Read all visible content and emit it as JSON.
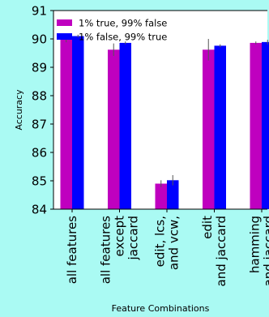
{
  "chart_data": {
    "type": "bar",
    "title": "",
    "xlabel": "Feature Combinations",
    "ylabel": "Accuracy",
    "ylim": [
      84,
      91
    ],
    "yticks": [
      84,
      85,
      86,
      87,
      88,
      89,
      90,
      91
    ],
    "grid": false,
    "legend_placement": "top-left",
    "categories": [
      [
        "all features"
      ],
      [
        "all features",
        "except",
        "jaccard"
      ],
      [
        "edit, lcs,",
        "and vcw,"
      ],
      [
        "edit",
        "and jaccard"
      ],
      [
        "hamming",
        "and jaccard"
      ]
    ],
    "series": [
      {
        "name": "1% true, 99% false",
        "color": "#bf00bf",
        "values": [
          90.0,
          89.62,
          84.9,
          89.62,
          89.86
        ],
        "errors": [
          0.12,
          0.22,
          0.12,
          0.38,
          0.05
        ]
      },
      {
        "name": "1% false, 99% true",
        "color": "#0000ff",
        "values": [
          90.1,
          89.86,
          85.02,
          89.76,
          89.89
        ],
        "errors": [
          0.05,
          0.05,
          0.18,
          0.05,
          0.08
        ]
      }
    ]
  }
}
